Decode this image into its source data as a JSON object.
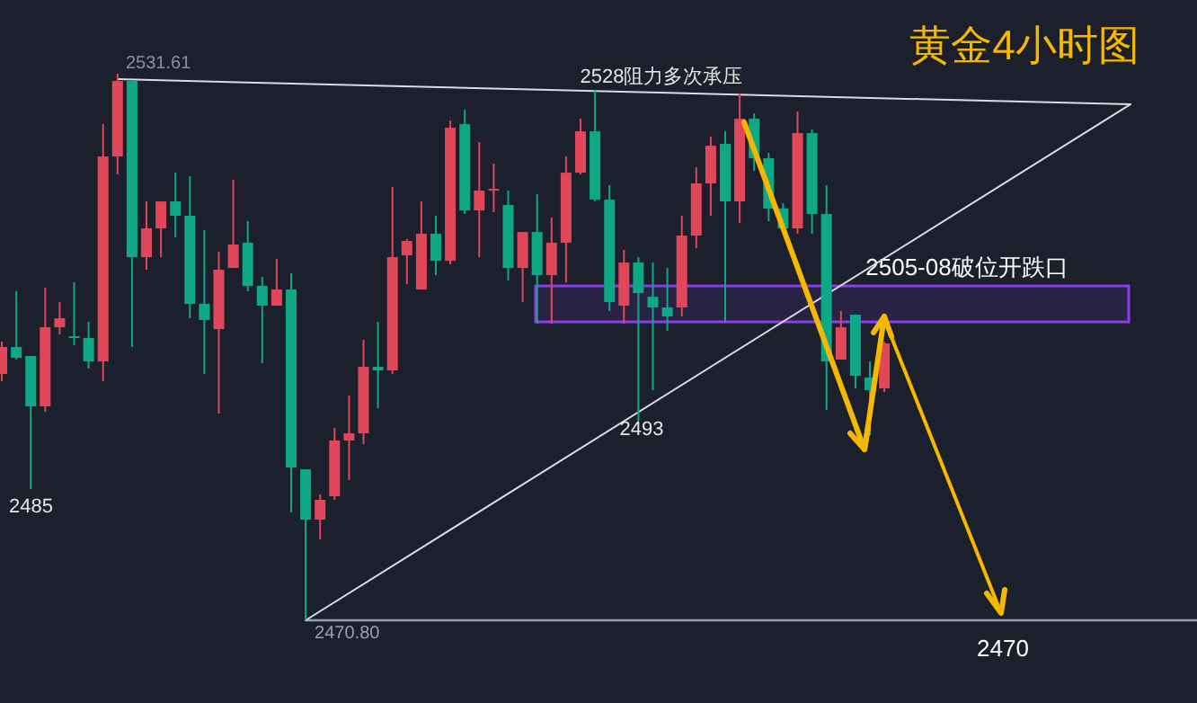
{
  "chart_data": {
    "type": "candlestick",
    "title": "黄金4小时图",
    "categories": [
      null,
      null,
      null,
      null,
      null,
      null,
      null,
      null,
      null,
      null,
      null,
      null,
      null,
      null,
      null,
      null,
      null,
      null,
      null,
      null,
      null,
      null,
      null,
      null,
      null,
      null,
      null,
      null,
      null,
      null,
      null,
      null,
      null,
      null,
      null,
      null,
      null,
      null,
      null,
      null,
      null,
      null,
      null,
      null,
      null,
      null,
      null,
      null,
      null,
      null,
      null,
      null,
      null,
      null,
      null,
      null,
      null,
      null,
      null,
      null,
      null,
      null,
      null,
      null,
      null,
      null,
      null,
      null,
      null,
      null,
      null,
      null,
      null,
      null,
      null,
      null,
      null,
      null,
      null,
      null,
      null,
      null,
      null
    ],
    "ohlc": [
      [
        2498.2,
        2501.8,
        2497.4,
        2501.2
      ],
      [
        2501.2,
        2507.4,
        2499.8,
        2500.0
      ],
      [
        2500.2,
        2500.2,
        2485.4,
        2494.6
      ],
      [
        2494.6,
        2507.8,
        2494.0,
        2503.4
      ],
      [
        2503.4,
        2506.2,
        2502.6,
        2504.4
      ],
      [
        2502.4,
        2508.4,
        2501.4,
        2502.2
      ],
      [
        2502.2,
        2504.0,
        2498.8,
        2499.6
      ],
      [
        2499.6,
        2526.0,
        2497.4,
        2522.4
      ],
      [
        2522.4,
        2531.61,
        2520.4,
        2530.8
      ],
      [
        2530.8,
        2530.8,
        2501.2,
        2511.2
      ],
      [
        2511.2,
        2517.4,
        2509.8,
        2514.4
      ],
      [
        2514.4,
        2517.4,
        2511.2,
        2517.4
      ],
      [
        2517.4,
        2520.6,
        2513.4,
        2515.8
      ],
      [
        2515.8,
        2520.2,
        2504.4,
        2506.0
      ],
      [
        2506.0,
        2514.2,
        2498.2,
        2504.2
      ],
      [
        2503.2,
        2511.8,
        2493.8,
        2509.8
      ],
      [
        2510.0,
        2519.8,
        2510.0,
        2512.6
      ],
      [
        2512.8,
        2515.2,
        2507.4,
        2508.0
      ],
      [
        2508.0,
        2509.0,
        2499.4,
        2505.8
      ],
      [
        2505.8,
        2511.0,
        2505.8,
        2507.6
      ],
      [
        2507.6,
        2509.4,
        2482.8,
        2487.8
      ],
      [
        2487.6,
        2487.6,
        2470.8,
        2482.0
      ],
      [
        2482.0,
        2484.8,
        2479.8,
        2484.2
      ],
      [
        2484.6,
        2492.2,
        2484.2,
        2490.8
      ],
      [
        2490.8,
        2495.8,
        2486.4,
        2491.6
      ],
      [
        2491.6,
        2502.0,
        2490.4,
        2499.0
      ],
      [
        2499.0,
        2504.0,
        2494.4,
        2498.6
      ],
      [
        2498.6,
        2519.0,
        2498.2,
        2511.2
      ],
      [
        2511.4,
        2513.2,
        2508.2,
        2513.0
      ],
      [
        2507.6,
        2517.4,
        2507.6,
        2513.8
      ],
      [
        2513.8,
        2515.8,
        2509.2,
        2510.8
      ],
      [
        2510.8,
        2526.4,
        2510.4,
        2525.6
      ],
      [
        2526.0,
        2527.6,
        2516.0,
        2516.4
      ],
      [
        2516.4,
        2524.0,
        2511.2,
        2518.6
      ],
      [
        2518.6,
        2521.6,
        2516.2,
        2518.8
      ],
      [
        2517.0,
        2518.6,
        2508.6,
        2510.0
      ],
      [
        2510.0,
        2514.0,
        2506.2,
        2514.0
      ],
      [
        2514.0,
        2518.2,
        2503.8,
        2509.2
      ],
      [
        2509.2,
        2515.6,
        2503.8,
        2512.8
      ],
      [
        2512.8,
        2522.4,
        2508.4,
        2520.6
      ],
      [
        2520.6,
        2526.6,
        2520.4,
        2525.2
      ],
      [
        2525.2,
        2529.8,
        2517.4,
        2517.6
      ],
      [
        2517.6,
        2519.2,
        2505.2,
        2506.2
      ],
      [
        2505.8,
        2512.0,
        2503.8,
        2510.6
      ],
      [
        2510.6,
        2511.2,
        2493.0,
        2507.2
      ],
      [
        2506.8,
        2510.6,
        2496.4,
        2505.6
      ],
      [
        2505.6,
        2510.0,
        2503.0,
        2504.6
      ],
      [
        2505.6,
        2515.8,
        2504.6,
        2513.6
      ],
      [
        2513.6,
        2521.2,
        2512.2,
        2519.4
      ],
      [
        2519.4,
        2524.6,
        2515.8,
        2523.6
      ],
      [
        2523.8,
        2525.2,
        2504.0,
        2517.4
      ],
      [
        2517.4,
        2529.4,
        2515.0,
        2526.6
      ],
      [
        2526.6,
        2527.2,
        2520.8,
        2522.2
      ],
      [
        2522.2,
        2522.8,
        2515.2,
        2516.6
      ],
      [
        2516.6,
        2517.2,
        2514.2,
        2514.4
      ],
      [
        2514.4,
        2527.4,
        2513.8,
        2525.0
      ],
      [
        2525.0,
        2525.4,
        2513.8,
        2516.0
      ],
      [
        2516.0,
        2519.2,
        2494.2,
        2499.6
      ],
      [
        2499.8,
        2505.2,
        2499.8,
        2503.4
      ],
      [
        2504.8,
        2504.8,
        2496.6,
        2498.0
      ],
      [
        2497.8,
        2499.6,
        2491.4,
        2496.4
      ],
      [
        2496.6,
        2501.8,
        2496.2,
        2501.6
      ],
      null,
      null,
      null,
      null,
      null,
      null,
      null,
      null,
      null,
      null,
      null,
      null,
      null,
      null,
      null,
      null,
      null,
      null,
      null,
      null,
      null
    ],
    "series": [
      {
        "type": "line",
        "color": "#d8dce4",
        "values": [
          null,
          null,
          null,
          null,
          null,
          null,
          null,
          null,
          2531.0,
          null,
          null,
          null,
          null,
          null,
          null,
          null,
          null,
          null,
          null,
          null,
          null,
          null,
          null,
          null,
          null,
          null,
          null,
          null,
          null,
          null,
          null,
          null,
          null,
          null,
          null,
          null,
          null,
          null,
          null,
          null,
          null,
          null,
          null,
          null,
          null,
          null,
          null,
          null,
          null,
          null,
          null,
          null,
          null,
          null,
          null,
          null,
          null,
          null,
          null,
          null,
          null,
          null,
          null,
          null,
          null,
          null,
          null,
          null,
          null,
          null,
          null,
          null,
          null,
          null,
          null,
          null,
          null,
          null,
          2528.2,
          null,
          null,
          null,
          null
        ]
      },
      {
        "type": "line",
        "color": "#d8dce4",
        "values": [
          null,
          null,
          null,
          null,
          null,
          null,
          null,
          null,
          null,
          null,
          null,
          null,
          null,
          null,
          null,
          null,
          null,
          null,
          null,
          null,
          null,
          2470.8,
          null,
          null,
          null,
          null,
          null,
          null,
          null,
          null,
          null,
          null,
          null,
          null,
          null,
          null,
          null,
          null,
          null,
          null,
          null,
          null,
          null,
          null,
          null,
          null,
          null,
          null,
          null,
          null,
          null,
          null,
          null,
          null,
          null,
          null,
          null,
          null,
          null,
          null,
          null,
          null,
          null,
          null,
          null,
          null,
          null,
          null,
          null,
          null,
          null,
          null,
          null,
          null,
          null,
          null,
          null,
          null,
          2528.2,
          null,
          null,
          null,
          null
        ]
      }
    ],
    "ref_lines": [
      {
        "axis": "y",
        "value": 2470.8,
        "label": "2470.80",
        "color": "#9aa0aa"
      }
    ],
    "bands": [
      {
        "axis": "y",
        "from": 2504.0,
        "to": 2508.0,
        "label": "2505-08破位开跌口",
        "color": "#8b3cf0"
      }
    ],
    "annotations": [
      {
        "text": "2531.61",
        "y": 2531.61
      },
      "2528阻力多次承压",
      {
        "text": "2493",
        "y": 2493
      },
      {
        "text": "2485",
        "y": 2485
      },
      {
        "text": "2470",
        "y": 2470
      }
    ]
  }
}
